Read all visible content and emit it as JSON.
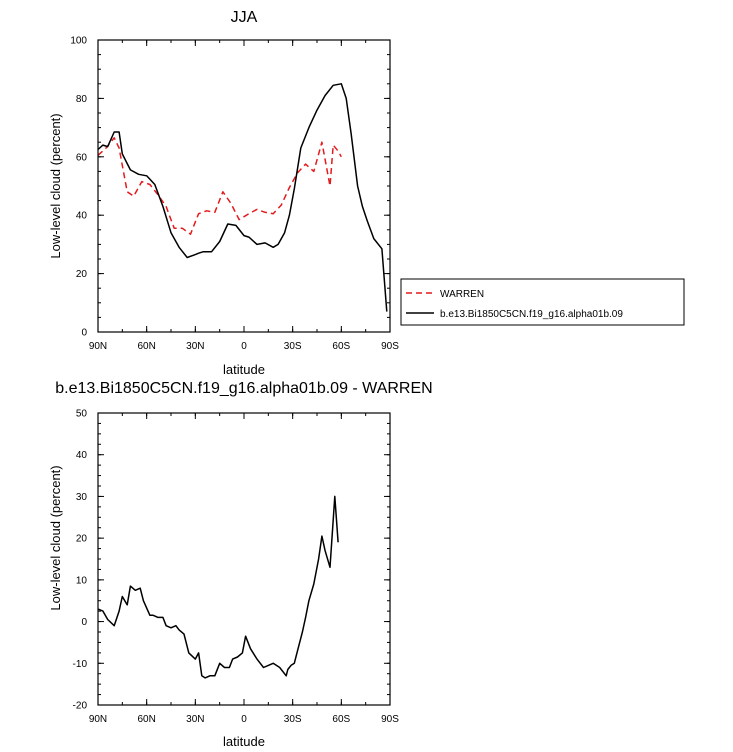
{
  "chart_data": [
    {
      "type": "line",
      "title": "JJA",
      "xlabel": "latitude",
      "ylabel": "Low-level cloud (percent)",
      "xlim": [
        90,
        -90
      ],
      "ylim": [
        0,
        100
      ],
      "xticks": [
        {
          "value": 90,
          "label": "90N"
        },
        {
          "value": 60,
          "label": "60N"
        },
        {
          "value": 30,
          "label": "30N"
        },
        {
          "value": 0,
          "label": "0"
        },
        {
          "value": -30,
          "label": "30S"
        },
        {
          "value": -60,
          "label": "60S"
        },
        {
          "value": -90,
          "label": "90S"
        }
      ],
      "yticks": [
        0,
        20,
        40,
        60,
        80,
        100
      ],
      "legend": "right-outside",
      "series": [
        {
          "name": "WARREN",
          "color": "#e41a1c",
          "dash": "dashed",
          "x": [
            90,
            85,
            80,
            77,
            72,
            68,
            63,
            58,
            53,
            48,
            43,
            38,
            33,
            28,
            23,
            18,
            13,
            8,
            3,
            0,
            -3,
            -8,
            -13,
            -18,
            -23,
            -28,
            -33,
            -38,
            -43,
            -48,
            -53,
            -55,
            -58,
            -60
          ],
          "y": [
            60.5,
            63,
            66.5,
            63,
            48,
            46.5,
            51.5,
            50.5,
            47,
            43,
            35.5,
            35.5,
            33.5,
            40.5,
            41.5,
            41,
            48,
            44,
            38.5,
            39.5,
            40.5,
            42,
            41,
            40.5,
            43.5,
            49.5,
            54.5,
            57.5,
            55,
            65,
            50,
            64,
            62,
            60
          ]
        },
        {
          "name": "b.e13.Bi1850C5CN.f19_g16.alpha01b.09",
          "color": "#000000",
          "dash": "solid",
          "x": [
            90,
            87,
            84,
            80,
            77,
            75,
            70,
            65,
            60,
            55,
            50,
            45,
            40,
            35,
            30,
            28,
            25,
            20,
            15,
            10,
            5,
            0,
            -3,
            -8,
            -13,
            -18,
            -21,
            -25,
            -28,
            -31,
            -35,
            -40,
            -45,
            -50,
            -55,
            -60,
            -63,
            -66,
            -70,
            -73,
            -76,
            -80,
            -85,
            -88
          ],
          "y": [
            62.5,
            64,
            63.5,
            68.5,
            68.5,
            61,
            55.5,
            54,
            53.5,
            50.5,
            43,
            34,
            29,
            25.5,
            26.5,
            27,
            27.5,
            27.5,
            31,
            37,
            36.5,
            33,
            32.5,
            30,
            30.5,
            29,
            30,
            34,
            40,
            49,
            63,
            70,
            76,
            81,
            84.5,
            85,
            80,
            68,
            50,
            43,
            38,
            32,
            28.5,
            7
          ]
        }
      ]
    },
    {
      "type": "line",
      "title": "b.e13.Bi1850C5CN.f19_g16.alpha01b.09 - WARREN",
      "xlabel": "latitude",
      "ylabel": "Low-level cloud (percent)",
      "xlim": [
        90,
        -90
      ],
      "ylim": [
        -20,
        50
      ],
      "xticks": [
        {
          "value": 90,
          "label": "90N"
        },
        {
          "value": 60,
          "label": "60N"
        },
        {
          "value": 30,
          "label": "30N"
        },
        {
          "value": 0,
          "label": "0"
        },
        {
          "value": -30,
          "label": "30S"
        },
        {
          "value": -60,
          "label": "60S"
        },
        {
          "value": -90,
          "label": "90S"
        }
      ],
      "yticks": [
        -20,
        -10,
        0,
        10,
        20,
        30,
        40,
        50
      ],
      "series": [
        {
          "color": "#000000",
          "dash": "solid",
          "x": [
            90,
            87,
            84,
            80,
            77,
            75,
            72,
            70,
            67,
            64,
            62,
            58,
            56,
            53,
            50,
            48,
            45,
            42,
            40,
            37,
            34,
            30,
            28,
            26,
            24,
            21,
            18,
            15,
            12,
            9,
            7,
            4,
            1,
            -1,
            -4,
            -8,
            -12,
            -15,
            -18,
            -22,
            -26,
            -27,
            -29,
            -31,
            -33,
            -36,
            -38,
            -40,
            -43,
            -46,
            -48,
            -50,
            -53,
            -56,
            -58
          ],
          "y": [
            3,
            2.5,
            0.5,
            -1,
            2.5,
            6,
            4,
            8.5,
            7.5,
            8,
            5,
            1.5,
            1.5,
            1,
            1,
            -1,
            -1.5,
            -1,
            -2,
            -3,
            -7.5,
            -9,
            -7.5,
            -13,
            -13.5,
            -13,
            -13,
            -10,
            -11,
            -11,
            -9,
            -8.5,
            -7.5,
            -3.5,
            -6.5,
            -9,
            -11,
            -10.5,
            -10,
            -11,
            -13,
            -11.5,
            -10.5,
            -10,
            -7,
            -2.5,
            1,
            5,
            9,
            15,
            20.5,
            17,
            13,
            30,
            19
          ]
        }
      ]
    }
  ]
}
